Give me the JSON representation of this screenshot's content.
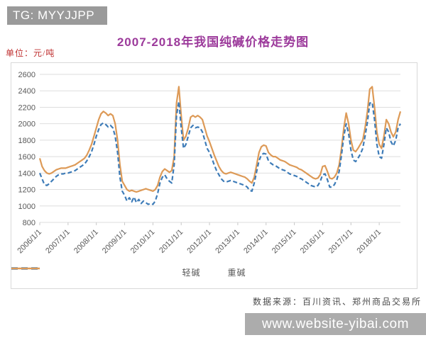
{
  "badge": {
    "text": "TG: MYYJJPP"
  },
  "title": "2007-2018年我国纯碱价格走势图",
  "unit_label": "单位：元/吨",
  "source": "数据来源：百川资讯、郑州商品交易所",
  "watermark": "www.website-yibai.com",
  "colors": {
    "title": "#9c3a9b",
    "unit_label": "#bf3030",
    "badge_bg": "#9a9a9a",
    "watermark_bg": "#acacac",
    "grid": "#dedede",
    "axis_text": "#595959",
    "light_soda_line": "#3e7cb8",
    "heavy_soda_line": "#dd9a57"
  },
  "chart_data": {
    "type": "line",
    "title": "2007-2018年我国纯碱价格走势图",
    "ylabel": "元/吨",
    "ylim": [
      800,
      2600
    ],
    "yticks": [
      800,
      1000,
      1200,
      1400,
      1600,
      1800,
      2000,
      2200,
      2400,
      2600
    ],
    "x_tick_labels": [
      "2006/1/1",
      "2007/1/1",
      "2008/1/1",
      "2009/1/1",
      "2010/1/1",
      "2011/1/1",
      "2012/1/1",
      "2013/1/1",
      "2014/1/1",
      "2015/1/1",
      "2016/1/1",
      "2017/1/1",
      "2018/1/1"
    ],
    "x_monthly_start": "2006-01",
    "x_monthly_end": "2018-10",
    "grid": "horizontal",
    "legend_position": "bottom",
    "series": [
      {
        "name": "轻碱",
        "style": "dashed",
        "color": "#3e7cb8",
        "values": [
          1400,
          1330,
          1260,
          1250,
          1270,
          1300,
          1330,
          1360,
          1380,
          1390,
          1390,
          1400,
          1400,
          1410,
          1420,
          1430,
          1450,
          1470,
          1490,
          1510,
          1550,
          1600,
          1660,
          1750,
          1850,
          1930,
          1990,
          2010,
          1990,
          1960,
          1980,
          1950,
          1850,
          1650,
          1350,
          1180,
          1130,
          1060,
          1100,
          1050,
          1110,
          1040,
          1080,
          1030,
          1060,
          1040,
          1020,
          1030,
          1020,
          1060,
          1150,
          1280,
          1350,
          1380,
          1330,
          1300,
          1280,
          1500,
          2100,
          2270,
          1950,
          1700,
          1750,
          1850,
          1950,
          1980,
          1950,
          1960,
          1950,
          1900,
          1800,
          1700,
          1650,
          1580,
          1500,
          1430,
          1380,
          1330,
          1300,
          1290,
          1300,
          1310,
          1300,
          1290,
          1280,
          1270,
          1260,
          1250,
          1230,
          1190,
          1180,
          1280,
          1420,
          1550,
          1620,
          1640,
          1630,
          1550,
          1520,
          1500,
          1490,
          1470,
          1450,
          1440,
          1430,
          1410,
          1390,
          1380,
          1370,
          1360,
          1340,
          1330,
          1310,
          1290,
          1270,
          1250,
          1240,
          1230,
          1250,
          1300,
          1380,
          1390,
          1320,
          1230,
          1230,
          1260,
          1320,
          1420,
          1620,
          1850,
          2000,
          1880,
          1680,
          1560,
          1540,
          1580,
          1630,
          1700,
          1850,
          2020,
          2250,
          2260,
          2050,
          1750,
          1600,
          1580,
          1750,
          1950,
          1900,
          1780,
          1730,
          1800,
          1950,
          2000
        ]
      },
      {
        "name": "重碱",
        "style": "solid",
        "color": "#dd9a57",
        "values": [
          1580,
          1480,
          1430,
          1400,
          1390,
          1400,
          1420,
          1440,
          1450,
          1460,
          1460,
          1460,
          1470,
          1480,
          1490,
          1500,
          1520,
          1540,
          1560,
          1580,
          1620,
          1680,
          1750,
          1850,
          1950,
          2050,
          2120,
          2150,
          2130,
          2100,
          2120,
          2100,
          2000,
          1800,
          1500,
          1300,
          1250,
          1200,
          1180,
          1190,
          1180,
          1170,
          1180,
          1190,
          1200,
          1210,
          1200,
          1190,
          1180,
          1200,
          1250,
          1350,
          1420,
          1450,
          1430,
          1410,
          1430,
          1600,
          2250,
          2450,
          2100,
          1800,
          1850,
          1950,
          2080,
          2100,
          2080,
          2100,
          2080,
          2050,
          1950,
          1850,
          1780,
          1700,
          1620,
          1550,
          1480,
          1430,
          1400,
          1390,
          1400,
          1410,
          1400,
          1390,
          1380,
          1370,
          1360,
          1350,
          1330,
          1300,
          1280,
          1350,
          1500,
          1650,
          1720,
          1740,
          1730,
          1650,
          1620,
          1600,
          1600,
          1580,
          1560,
          1550,
          1540,
          1520,
          1500,
          1490,
          1480,
          1470,
          1450,
          1440,
          1420,
          1400,
          1380,
          1360,
          1340,
          1330,
          1340,
          1380,
          1480,
          1490,
          1420,
          1340,
          1330,
          1350,
          1400,
          1500,
          1700,
          1950,
          2130,
          2000,
          1800,
          1680,
          1660,
          1700,
          1750,
          1800,
          1950,
          2150,
          2420,
          2450,
          2200,
          1900,
          1750,
          1700,
          1850,
          2050,
          2000,
          1900,
          1840,
          1900,
          2050,
          2150
        ]
      }
    ]
  }
}
